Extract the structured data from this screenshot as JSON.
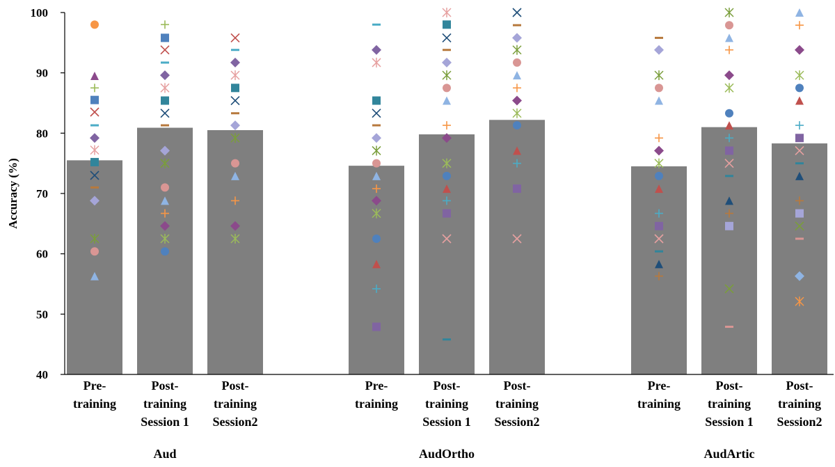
{
  "chart_data": {
    "type": "bar",
    "ylabel": "Accuracy (%)",
    "xlabel": "",
    "ylim": [
      40,
      100
    ],
    "yticks": [
      40,
      50,
      60,
      70,
      80,
      90,
      100
    ],
    "grid": false,
    "legend": "none",
    "bar_color": "#7f7f7f",
    "groups": [
      {
        "label": "Aud",
        "conditions": [
          {
            "label": [
              "Pre-",
              "training"
            ],
            "value": 75.5,
            "points": [
              98,
              89.5,
              87.5,
              85.5,
              83.5,
              81.3,
              79.2,
              77.2,
              75.2,
              73,
              71,
              68.8,
              62.5,
              60.4,
              56.3
            ]
          },
          {
            "label": [
              "Post-",
              "training",
              "Session 1"
            ],
            "value": 80.9,
            "points": [
              98,
              95.8,
              93.8,
              91.7,
              89.6,
              87.5,
              85.4,
              83.3,
              81.3,
              77.1,
              75,
              71,
              68.8,
              66.7,
              64.6,
              62.5,
              60.4
            ]
          },
          {
            "label": [
              "Post-",
              "training",
              "Session2"
            ],
            "value": 80.5,
            "points": [
              95.8,
              93.8,
              91.7,
              89.6,
              87.5,
              85.4,
              83.3,
              81.3,
              79.2,
              75,
              72.9,
              68.8,
              64.6,
              62.5
            ]
          }
        ]
      },
      {
        "label": "AudOrtho",
        "conditions": [
          {
            "label": [
              "Pre-",
              "training"
            ],
            "value": 74.6,
            "points": [
              98,
              93.8,
              91.7,
              85.4,
              83.3,
              81.3,
              79.2,
              77.1,
              75,
              72.9,
              70.8,
              68.8,
              66.7,
              62.5,
              58.3,
              54.2,
              47.9
            ]
          },
          {
            "label": [
              "Post-",
              "training",
              "Session 1"
            ],
            "value": 79.8,
            "points": [
              100,
              98,
              95.8,
              93.8,
              91.7,
              89.6,
              87.5,
              85.4,
              81.3,
              79.2,
              75,
              72.9,
              70.8,
              68.8,
              66.7,
              62.5,
              45.8
            ]
          },
          {
            "label": [
              "Post-",
              "training",
              "Session2"
            ],
            "value": 82.2,
            "points": [
              100,
              97.9,
              95.8,
              93.8,
              91.7,
              89.6,
              87.5,
              85.4,
              83.3,
              81.3,
              77.1,
              75,
              70.8,
              62.5
            ]
          }
        ]
      },
      {
        "label": "AudArtic",
        "conditions": [
          {
            "label": [
              "Pre-",
              "training"
            ],
            "value": 74.5,
            "points": [
              95.8,
              93.8,
              89.6,
              87.5,
              85.4,
              79.2,
              77.1,
              75,
              72.9,
              70.8,
              66.7,
              64.6,
              62.5,
              60.4,
              58.3,
              56.3
            ]
          },
          {
            "label": [
              "Post-",
              "training",
              "Session 1"
            ],
            "value": 81,
            "points": [
              100,
              97.9,
              95.8,
              93.8,
              89.6,
              87.5,
              83.3,
              81.3,
              79.2,
              77.1,
              75,
              72.9,
              68.8,
              66.7,
              64.6,
              54.2,
              47.9
            ]
          },
          {
            "label": [
              "Post-",
              "training",
              "Session2"
            ],
            "value": 78.3,
            "points": [
              100,
              97.9,
              93.8,
              89.6,
              87.5,
              85.4,
              81.3,
              79.2,
              77.1,
              75,
              72.9,
              68.8,
              66.7,
              64.6,
              62.5,
              56.3,
              52.1
            ]
          }
        ]
      }
    ],
    "marker_colors": [
      "#f79646",
      "#8b4a8b",
      "#9bbb59",
      "#4f81bd",
      "#c0504d",
      "#4bacc6",
      "#8064a2",
      "#e6a0a0",
      "#31859b",
      "#1f4e79",
      "#b7793d",
      "#a5a5d8",
      "#7a9e3b",
      "#d99694",
      "#8fb4e3"
    ],
    "marker_shapes": [
      "circle",
      "square",
      "diamond",
      "triangle",
      "x",
      "star",
      "plus",
      "dash"
    ]
  }
}
